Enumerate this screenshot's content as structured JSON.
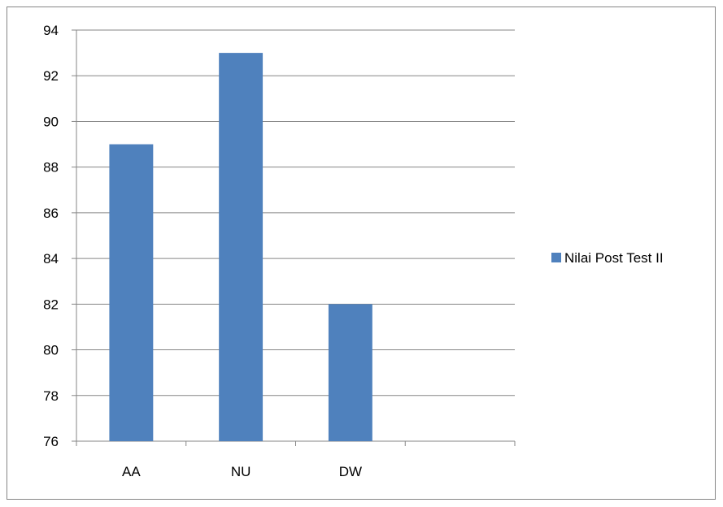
{
  "chart_data": {
    "type": "bar",
    "categories": [
      "AA",
      "NU",
      "DW",
      ""
    ],
    "series": [
      {
        "name": "Nilai Post Test II",
        "values": [
          89,
          93,
          82,
          null
        ],
        "color": "#4f81bd"
      }
    ],
    "ylim": [
      76,
      94
    ],
    "ytick_step": 2,
    "grid": true,
    "legend_position": "right"
  }
}
